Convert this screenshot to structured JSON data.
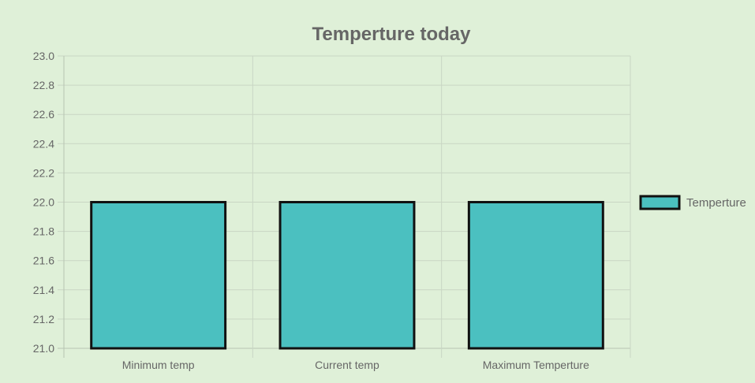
{
  "chart_data": {
    "type": "bar",
    "title": "Temperture today",
    "categories": [
      "Minimum temp",
      "Current temp",
      "Maximum Temperture"
    ],
    "series": [
      {
        "name": "Temperture",
        "values": [
          22.0,
          22.0,
          22.0
        ]
      }
    ],
    "ylim": [
      21.0,
      23.0
    ],
    "ytick_labels": [
      "21.0",
      "21.2",
      "21.4",
      "21.6",
      "21.8",
      "22.0",
      "22.2",
      "22.4",
      "22.6",
      "22.8",
      "23.0"
    ],
    "grid": true,
    "legend_position": "right",
    "colors": {
      "bar_fill": "#4bc0c0",
      "bar_border": "#111111",
      "grid": "#c9d6c4",
      "axis": "#b7c4b2",
      "text": "#666666",
      "background": "#dff0d8"
    }
  }
}
